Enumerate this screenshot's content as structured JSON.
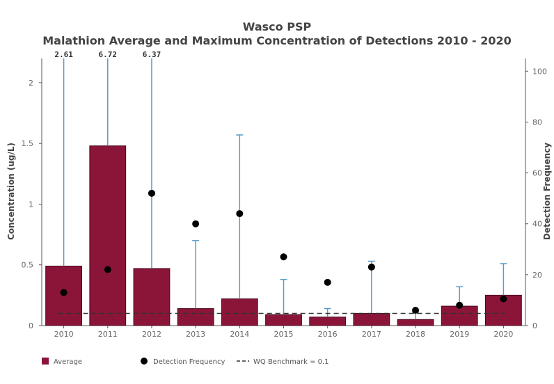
{
  "chart_data": {
    "type": "bar",
    "title": "Wasco PSP",
    "subtitle": "Malathion Average and Maximum Concentration of Detections 2010 - 2020",
    "ylabel": "Concentration (ug/L)",
    "y2label": "Detection Frequency",
    "xlabel": "",
    "categories": [
      "2010",
      "2011",
      "2012",
      "2013",
      "2014",
      "2015",
      "2016",
      "2017",
      "2018",
      "2019",
      "2020"
    ],
    "ylim": [
      0,
      2.2
    ],
    "y2lim": [
      0,
      105
    ],
    "yticks": [
      0,
      0.5,
      1,
      1.5,
      2
    ],
    "yticklabels": [
      "0",
      "0.5",
      "1",
      "1.5",
      "2"
    ],
    "y2ticks": [
      0,
      20,
      40,
      60,
      80,
      100
    ],
    "y2ticklabels": [
      "0",
      "20",
      "40",
      "60",
      "80",
      "100"
    ],
    "series": [
      {
        "name": "Average",
        "type": "bar",
        "color": "#8b1538",
        "values": [
          0.49,
          1.48,
          0.47,
          0.14,
          0.22,
          0.09,
          0.07,
          0.1,
          0.05,
          0.16,
          0.25
        ]
      },
      {
        "name": "Maximum",
        "type": "errorbar",
        "color": "#5b9bc5",
        "values": [
          2.61,
          6.72,
          6.37,
          0.7,
          1.57,
          0.38,
          0.14,
          0.53,
          0.11,
          0.32,
          0.51
        ]
      },
      {
        "name": "Detection Frequency",
        "type": "scatter",
        "axis": "y2",
        "color": "#000000",
        "values": [
          13,
          22,
          52,
          40,
          44,
          27,
          17,
          23,
          6,
          8,
          10.5
        ]
      }
    ],
    "annotations": [
      {
        "category": "2010",
        "text": "2.61"
      },
      {
        "category": "2011",
        "text": "6.72"
      },
      {
        "category": "2012",
        "text": "6.37"
      }
    ],
    "benchmark": {
      "value": 0.1,
      "label": "WQ Benchmark =  0.1",
      "color": "#333333"
    },
    "legend": {
      "position": "bottom",
      "entries": [
        "Average",
        "Detection Frequency",
        "WQ Benchmark =  0.1"
      ]
    }
  }
}
